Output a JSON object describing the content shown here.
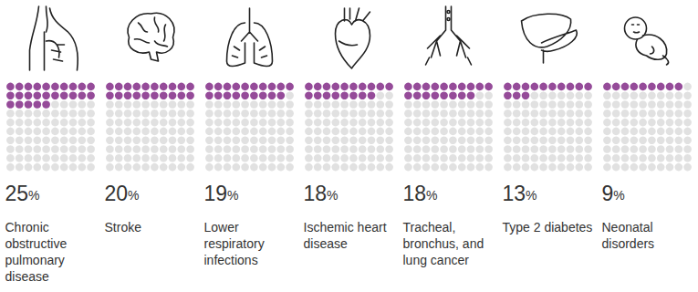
{
  "chart_data": {
    "type": "waffle",
    "categories": [
      "Chronic obstructive pulmonary disease",
      "Stroke",
      "Lower respiratory infections",
      "Ischemic heart disease",
      "Tracheal, bronchus, and lung cancer",
      "Type 2 diabetes",
      "Neonatal disorders"
    ],
    "values": [
      25,
      20,
      19,
      18,
      18,
      13,
      9
    ],
    "value_labels": [
      "25%",
      "20%",
      "19%",
      "18%",
      "18%",
      "13%",
      "9%"
    ],
    "color": "#7b1e80",
    "data_labels": true,
    "tick_labels": false
  }
}
